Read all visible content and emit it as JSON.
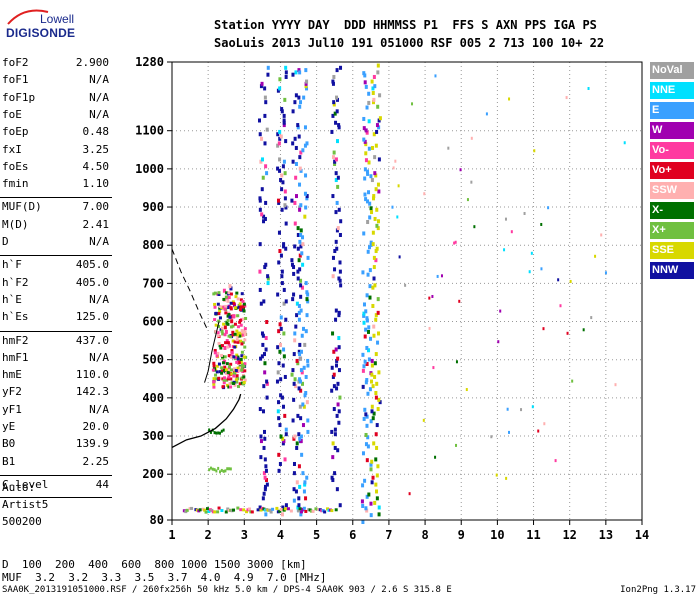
{
  "logo": {
    "line1": "Lowell",
    "line2": "DIGISONDE"
  },
  "header": {
    "line1": "Station YYYY DAY  DDD HHMMSS P1  FFS S AXN PPS IGA PS",
    "line2": "SaoLuis 2013 Jul10 191 051000 RSF 005 2 713 100 10+ 22"
  },
  "params": [
    {
      "name": "foF2",
      "value": "2.900"
    },
    {
      "name": "foF1",
      "value": "N/A"
    },
    {
      "name": "foF1p",
      "value": "N/A"
    },
    {
      "name": "foE",
      "value": "N/A"
    },
    {
      "name": "foEp",
      "value": "0.48"
    },
    {
      "name": "fxI",
      "value": "3.25"
    },
    {
      "name": "foEs",
      "value": "4.50"
    },
    {
      "name": "fmin",
      "value": "1.10"
    },
    {
      "name": "MUF(D)",
      "value": "7.00"
    },
    {
      "name": "M(D)",
      "value": "2.41"
    },
    {
      "name": "D",
      "value": "N/A"
    },
    {
      "name": "h`F",
      "value": "405.0"
    },
    {
      "name": "h`F2",
      "value": "405.0"
    },
    {
      "name": "h`E",
      "value": "N/A"
    },
    {
      "name": "h`Es",
      "value": "125.0"
    },
    {
      "name": "hmF2",
      "value": "437.0"
    },
    {
      "name": "hmF1",
      "value": "N/A"
    },
    {
      "name": "hmE",
      "value": "110.0"
    },
    {
      "name": "yF2",
      "value": "142.3"
    },
    {
      "name": "yF1",
      "value": "N/A"
    },
    {
      "name": "yE",
      "value": "20.0"
    },
    {
      "name": "B0",
      "value": "139.9"
    },
    {
      "name": "B1",
      "value": "2.25"
    },
    {
      "name": "C-level",
      "value": "44"
    }
  ],
  "notes": {
    "auto": "Auto:",
    "artist": "Artist5",
    "version": "500200"
  },
  "legend": [
    {
      "label": "NoVal",
      "color": "#a0a0a0"
    },
    {
      "label": "NNE",
      "color": "#00e0ff"
    },
    {
      "label": "E",
      "color": "#3aa0ff"
    },
    {
      "label": "W",
      "color": "#a000b0"
    },
    {
      "label": "Vo-",
      "color": "#ff3aa0"
    },
    {
      "label": "Vo+",
      "color": "#e00020"
    },
    {
      "label": "SSW",
      "color": "#ffb0b0"
    },
    {
      "label": "X-",
      "color": "#007000"
    },
    {
      "label": "X+",
      "color": "#70c040"
    },
    {
      "label": "SSE",
      "color": "#d8d800"
    },
    {
      "label": "NNW",
      "color": "#1010a0"
    }
  ],
  "muf_table": {
    "d_label": "D",
    "d_values": "  100  200  400  600  800 1000 1500 3000 [km]",
    "muf_label": "MUF",
    "muf_values": "  3.2  3.2  3.3  3.5  3.7  4.0  4.9  7.0 [MHz]"
  },
  "footer": {
    "left": "SAA0K_2013191051000.RSF / 260fx256h 50 kHz 5.0 km / DPS-4 SAA0K 903 / 2.6 S 315.8 E",
    "right": "Ion2Png 1.3.17"
  },
  "chart_data": {
    "type": "scatter",
    "x_ticks": [
      1,
      2,
      3,
      4,
      5,
      6,
      7,
      8,
      9,
      10,
      11,
      12,
      13,
      14
    ],
    "y_ticks": [
      80,
      200,
      300,
      400,
      500,
      600,
      700,
      800,
      900,
      1000,
      1100,
      1280
    ],
    "xlim": [
      1,
      14
    ],
    "ylim": [
      80,
      1280
    ],
    "grid": "dotted",
    "profile_curve": [
      [
        1.0,
        270
      ],
      [
        1.4,
        290
      ],
      [
        1.8,
        300
      ],
      [
        2.2,
        320
      ],
      [
        2.5,
        345
      ],
      [
        2.7,
        370
      ],
      [
        2.85,
        395
      ],
      [
        2.9,
        410
      ]
    ],
    "mirror_curve": [
      [
        1.9,
        440
      ],
      [
        2.0,
        470
      ],
      [
        2.1,
        520
      ],
      [
        2.2,
        560
      ],
      [
        2.3,
        600
      ]
    ],
    "dashed_line": [
      [
        1.0,
        790
      ],
      [
        1.25,
        730
      ],
      [
        1.5,
        680
      ],
      [
        1.75,
        625
      ],
      [
        2.0,
        575
      ]
    ],
    "traces": [
      {
        "x": 2.5,
        "y0": 440,
        "y1": 720,
        "color": "#ff3aa0"
      },
      {
        "x": 2.7,
        "y0": 450,
        "y1": 650,
        "color": "#e00020"
      },
      {
        "x": 3.5,
        "y0": 100,
        "y1": 1280,
        "color": "#1010a0"
      },
      {
        "x": 4.0,
        "y0": 100,
        "y1": 1280,
        "color": "#1010a0"
      },
      {
        "x": 4.4,
        "y0": 100,
        "y1": 1280,
        "color": "#1010a0"
      },
      {
        "x": 4.6,
        "y0": 100,
        "y1": 1280,
        "color": "#3aa0ff"
      },
      {
        "x": 5.5,
        "y0": 100,
        "y1": 1280,
        "color": "#1010a0"
      },
      {
        "x": 6.35,
        "y0": 80,
        "y1": 1280,
        "color": "#3aa0ff"
      },
      {
        "x": 6.6,
        "y0": 100,
        "y1": 1280,
        "color": "#d8d800"
      }
    ],
    "es_trace": {
      "x0": 1.3,
      "x1": 5.6,
      "y": 110
    }
  }
}
